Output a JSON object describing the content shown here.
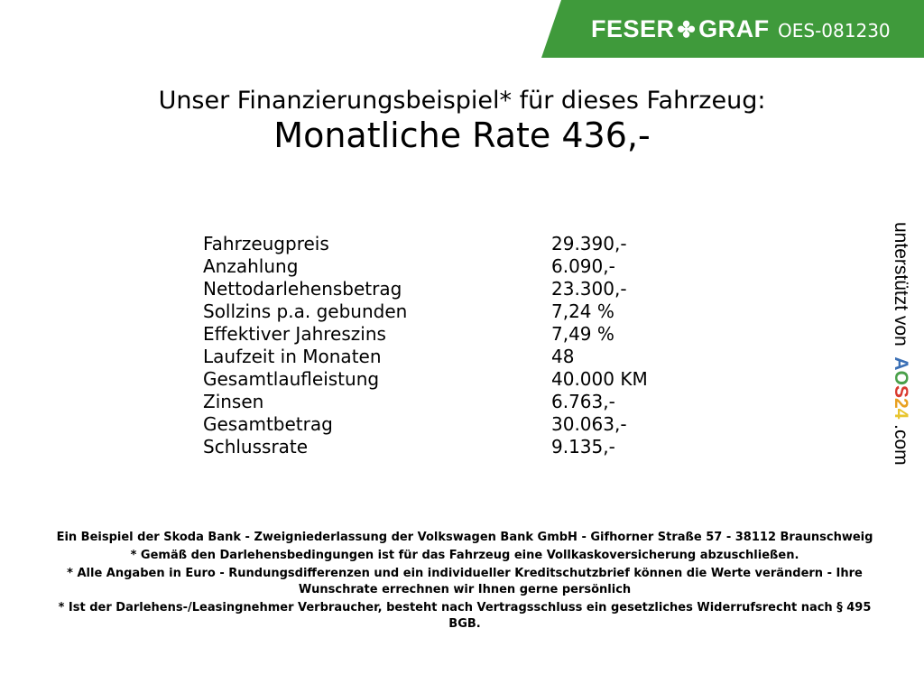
{
  "header": {
    "brand": "FESER",
    "brand2": "GRAF",
    "code": "OES-081230",
    "brand_color": "#3f9a3b"
  },
  "title": "Unser Finanzierungsbeispiel* für dieses Fahrzeug:",
  "rate": "Monatliche Rate 436,-",
  "rows": [
    {
      "label": "Fahrzeugpreis",
      "value": "29.390,-"
    },
    {
      "label": "Anzahlung",
      "value": "6.090,-"
    },
    {
      "label": "Nettodarlehensbetrag",
      "value": "23.300,-"
    },
    {
      "label": "Sollzins p.a. gebunden",
      "value": "7,24 %"
    },
    {
      "label": "Effektiver Jahreszins",
      "value": "7,49 %"
    },
    {
      "label": "Laufzeit in Monaten",
      "value": "48"
    },
    {
      "label": "Gesamtlaufleistung",
      "value": "40.000 KM"
    },
    {
      "label": "Zinsen",
      "value": "6.763,-"
    },
    {
      "label": "Gesamtbetrag",
      "value": "30.063,-"
    },
    {
      "label": "Schlussrate",
      "value": "9.135,-"
    }
  ],
  "side": {
    "prefix": "unterstützt von",
    "a": "A",
    "o": "O",
    "s": "S",
    "n2": "2",
    "n4": "4",
    "suffix": ".com"
  },
  "footer": [
    "Ein Beispiel der Skoda Bank - Zweigniederlassung der Volkswagen Bank GmbH - Gifhorner Straße 57 - 38112 Braunschweig",
    "* Gemäß den Darlehensbedingungen ist für das Fahrzeug eine Vollkaskoversicherung abzuschließen.",
    "* Alle Angaben in Euro - Rundungsdifferenzen und ein individueller Kreditschutzbrief können die Werte verändern - Ihre Wunschrate errechnen wir Ihnen gerne persönlich",
    "* Ist der Darlehens-/Leasingnehmer Verbraucher, besteht nach Vertragsschluss ein gesetzliches Widerrufsrecht nach § 495 BGB."
  ]
}
